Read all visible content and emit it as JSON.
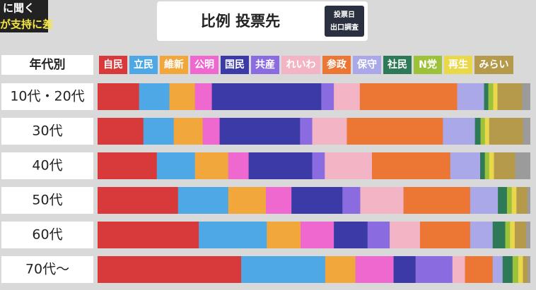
{
  "chart_data": {
    "type": "stacked-bar-horizontal",
    "title": "比例 投票先",
    "subtitle": [
      "投票日",
      "出口調査"
    ],
    "annotations": [
      "に聞く",
      "が支持に差"
    ],
    "category_label": "年代別",
    "categories": [
      "10代・20代",
      "30代",
      "40代",
      "50代",
      "60代",
      "70代～"
    ],
    "xlim": [
      0,
      100
    ],
    "series": [
      {
        "name": "自民",
        "color": "#d8393b",
        "values": [
          9.6,
          10.6,
          13.7,
          18.6,
          23.4,
          33.2
        ]
      },
      {
        "name": "立民",
        "color": "#4fa8e6",
        "values": [
          7.0,
          7.0,
          8.8,
          11.6,
          15.7,
          19.4
        ]
      },
      {
        "name": "維新",
        "color": "#f1a73b",
        "values": [
          5.9,
          6.7,
          7.7,
          8.7,
          7.8,
          7.0
        ]
      },
      {
        "name": "公明",
        "color": "#ee68cf",
        "values": [
          3.9,
          3.9,
          4.7,
          5.9,
          7.7,
          8.8
        ]
      },
      {
        "name": "国民",
        "color": "#3b3aa6",
        "values": [
          25.3,
          18.6,
          14.7,
          11.8,
          7.8,
          5.1
        ]
      },
      {
        "name": "共産",
        "color": "#8a6be0",
        "values": [
          2.9,
          2.8,
          2.9,
          4.1,
          5.1,
          8.5
        ]
      },
      {
        "name": "れいわ",
        "color": "#f3b5c5",
        "values": [
          6.0,
          8.0,
          10.9,
          10.0,
          7.0,
          2.9
        ]
      },
      {
        "name": "参政",
        "color": "#ec7634",
        "values": [
          22.5,
          22.2,
          18.1,
          15.4,
          11.6,
          6.4
        ]
      },
      {
        "name": "保守",
        "color": "#aaa8e8",
        "values": [
          6.2,
          7.4,
          6.9,
          6.4,
          5.2,
          2.3
        ]
      },
      {
        "name": "社民",
        "color": "#2e7a58",
        "values": [
          1.0,
          1.3,
          1.1,
          2.1,
          2.9,
          2.3
        ]
      },
      {
        "name": "N党",
        "color": "#9cc23a",
        "values": [
          1.1,
          1.0,
          1.0,
          1.1,
          1.1,
          1.3
        ]
      },
      {
        "name": "再生",
        "color": "#e8d84a",
        "values": [
          1.0,
          1.0,
          1.1,
          1.1,
          1.1,
          1.1
        ]
      },
      {
        "name": "みらい",
        "color": "#b49a4a",
        "values": [
          5.7,
          7.8,
          4.9,
          2.5,
          2.6,
          1.1
        ]
      }
    ]
  }
}
